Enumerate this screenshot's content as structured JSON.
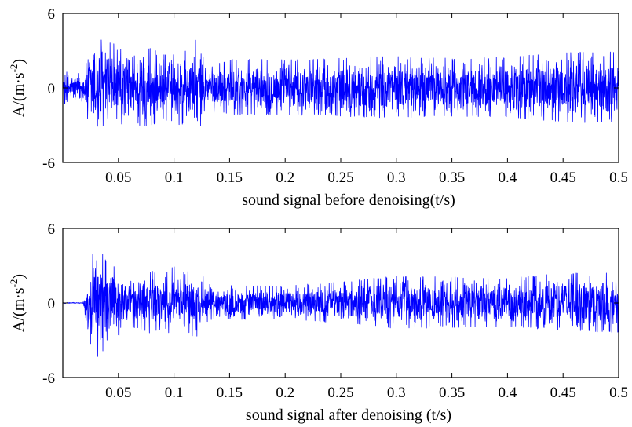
{
  "chart_data": [
    {
      "type": "line",
      "title": "",
      "xlabel": "sound signal before denoising(t/s)",
      "ylabel": "A/(m·s",
      "ylabel_exponent": "-2",
      "ylabel_close": ")",
      "xlim": [
        0,
        0.5
      ],
      "ylim": [
        -6,
        6
      ],
      "grid": false,
      "legend": "none",
      "xticks": [
        0.05,
        0.1,
        0.15,
        0.2,
        0.25,
        0.3,
        0.35,
        0.4,
        0.45,
        0.5
      ],
      "xtick_labels": [
        "0.05",
        "0.1",
        "0.15",
        "0.2",
        "0.25",
        "0.3",
        "0.35",
        "0.4",
        "0.45",
        "0.5"
      ],
      "yticks": [
        -6,
        0,
        6
      ],
      "ytick_labels": [
        "-6",
        "0",
        "6"
      ],
      "series": [
        {
          "color": "#0000ff",
          "envelope": {
            "t": [
              0,
              0.02,
              0.025,
              0.03,
              0.035,
              0.04,
              0.05,
              0.06,
              0.07,
              0.08,
              0.09,
              0.1,
              0.11,
              0.12,
              0.13,
              0.14,
              0.15,
              0.2,
              0.25,
              0.3,
              0.35,
              0.4,
              0.45,
              0.5
            ],
            "amplitude": [
              1.3,
              1.5,
              4.0,
              5.3,
              4.8,
              3.8,
              3.5,
              2.2,
              3.3,
              3.2,
              2.6,
              3.4,
              3.0,
              3.9,
              2.4,
              2.0,
              2.3,
              2.3,
              2.4,
              2.6,
              2.4,
              2.5,
              2.9,
              3.0
            ]
          }
        }
      ]
    },
    {
      "type": "line",
      "title": "",
      "xlabel": "sound signal after denoising (t/s)",
      "ylabel": "A/(m·s",
      "ylabel_exponent": "-2",
      "ylabel_close": ")",
      "xlim": [
        0,
        0.5
      ],
      "ylim": [
        -6,
        6
      ],
      "grid": false,
      "legend": "none",
      "xticks": [
        0.05,
        0.1,
        0.15,
        0.2,
        0.25,
        0.3,
        0.35,
        0.4,
        0.45,
        0.5
      ],
      "xtick_labels": [
        "0.05",
        "0.1",
        "0.15",
        "0.2",
        "0.25",
        "0.3",
        "0.35",
        "0.4",
        "0.45",
        "0.5"
      ],
      "yticks": [
        -6,
        0,
        6
      ],
      "ytick_labels": [
        "-6",
        "0",
        "6"
      ],
      "series": [
        {
          "color": "#0000ff",
          "envelope": {
            "t": [
              0,
              0.018,
              0.02,
              0.025,
              0.03,
              0.035,
              0.04,
              0.05,
              0.06,
              0.07,
              0.08,
              0.09,
              0.1,
              0.11,
              0.12,
              0.13,
              0.14,
              0.15,
              0.2,
              0.25,
              0.3,
              0.35,
              0.4,
              0.45,
              0.5
            ],
            "amplitude": [
              0.05,
              0.05,
              1.0,
              3.5,
              4.8,
              4.3,
              3.2,
              2.8,
              2.0,
              2.3,
              2.6,
              2.2,
              3.0,
              2.4,
              3.0,
              1.6,
              1.2,
              1.4,
              1.4,
              1.7,
              2.2,
              2.1,
              2.0,
              2.4,
              2.5
            ]
          }
        }
      ]
    }
  ]
}
